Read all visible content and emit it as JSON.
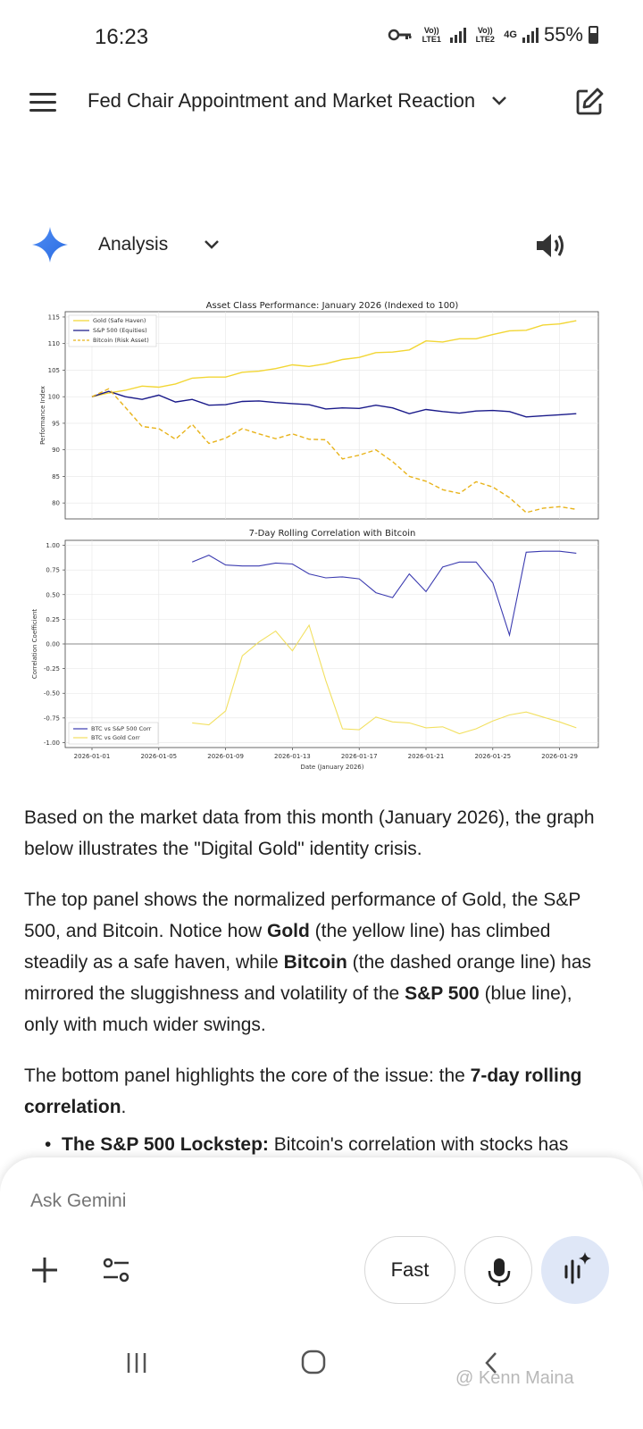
{
  "status_bar": {
    "time": "16:23",
    "sim1": "Vo)) LTE1",
    "sim2": "Vo)) LTE2",
    "net2_type": "4G",
    "battery": "55%"
  },
  "header": {
    "title": "Fed Chair Appointment and Market Reaction",
    "icons": {
      "menu": "menu-icon",
      "edit": "edit-icon",
      "dropdown": "chevron-down-icon"
    }
  },
  "response": {
    "mode_label": "Analysis",
    "icons": {
      "gemini": "gemini-star-icon",
      "speaker": "speaker-icon"
    }
  },
  "chart_data": [
    {
      "type": "line",
      "title": "Asset Class Performance: January 2026 (Indexed to 100)",
      "ylabel": "Performance Index",
      "ylim": [
        77,
        116
      ],
      "yticks": [
        "115",
        "110",
        "105",
        "100",
        "95",
        "90",
        "85",
        "80"
      ],
      "grid": true,
      "legend_position": "top-left",
      "x_days": [
        1,
        2,
        3,
        4,
        5,
        6,
        7,
        8,
        9,
        10,
        11,
        12,
        13,
        14,
        15,
        16,
        17,
        18,
        19,
        20,
        21,
        22,
        23,
        24,
        25,
        26,
        27,
        28,
        29,
        30
      ],
      "series": [
        {
          "name": "Gold (Safe Haven)",
          "color": "#f2d634",
          "style": "solid",
          "values": [
            100,
            100.7,
            101.2,
            102.0,
            101.8,
            102.4,
            103.5,
            103.7,
            103.7,
            104.6,
            104.8,
            105.3,
            106.0,
            105.7,
            106.2,
            107.0,
            107.4,
            108.3,
            108.4,
            108.8,
            110.5,
            110.3,
            110.9,
            110.9,
            111.7,
            112.4,
            112.5,
            113.5,
            113.7,
            114.3
          ]
        },
        {
          "name": "S&P 500 (Equities)",
          "color": "#1a1a8a",
          "style": "solid",
          "values": [
            100,
            101.0,
            100.0,
            99.5,
            100.3,
            99.0,
            99.5,
            98.4,
            98.5,
            99.1,
            99.2,
            98.9,
            98.7,
            98.5,
            97.7,
            97.9,
            97.8,
            98.4,
            97.9,
            96.8,
            97.6,
            97.2,
            96.9,
            97.3,
            97.4,
            97.2,
            96.2,
            96.4,
            96.6,
            96.8
          ]
        },
        {
          "name": "Bitcoin (Risk Asset)",
          "color": "#e8b31a",
          "style": "dashed",
          "values": [
            100,
            101.5,
            98.0,
            94.4,
            94.0,
            92.0,
            94.8,
            91.2,
            92.2,
            94.0,
            93.0,
            92.1,
            93.0,
            92.0,
            91.9,
            88.3,
            89.0,
            90.0,
            87.8,
            85.0,
            84.1,
            82.5,
            81.8,
            84.0,
            83.0,
            81.0,
            78.2,
            79.0,
            79.3,
            78.8
          ]
        }
      ]
    },
    {
      "type": "line",
      "title": "7-Day Rolling Correlation with Bitcoin",
      "xlabel": "Date (January 2026)",
      "ylabel": "Correlation Coefficient",
      "ylim": [
        -1.05,
        1.05
      ],
      "yticks": [
        "1.00",
        "0.75",
        "0.50",
        "0.25",
        "0.00",
        "-0.25",
        "-0.50",
        "-0.75",
        "-1.00"
      ],
      "x_ticklabels": [
        "2026-01-01",
        "2026-01-05",
        "2026-01-09",
        "2026-01-13",
        "2026-01-17",
        "2026-01-21",
        "2026-01-25",
        "2026-01-29"
      ],
      "x_ticks_days": [
        1,
        5,
        9,
        13,
        17,
        21,
        25,
        29
      ],
      "grid": true,
      "zero_line": true,
      "legend_position": "bottom-left",
      "x_days": [
        7,
        8,
        9,
        10,
        11,
        12,
        13,
        14,
        15,
        16,
        17,
        18,
        19,
        20,
        21,
        22,
        23,
        24,
        25,
        26,
        27,
        28,
        29,
        30
      ],
      "series": [
        {
          "name": "BTC vs S&P 500 Corr",
          "color": "#3b3bb0",
          "values": [
            0.83,
            0.9,
            0.8,
            0.79,
            0.79,
            0.82,
            0.81,
            0.71,
            0.67,
            0.68,
            0.66,
            0.52,
            0.47,
            0.71,
            0.53,
            0.78,
            0.83,
            0.83,
            0.62,
            0.09,
            0.93,
            0.94,
            0.94,
            0.92
          ]
        },
        {
          "name": "BTC vs Gold Corr",
          "color": "#f2e060",
          "values": [
            -0.8,
            -0.82,
            -0.68,
            -0.12,
            0.02,
            0.13,
            -0.07,
            0.19,
            -0.37,
            -0.86,
            -0.87,
            -0.74,
            -0.79,
            -0.8,
            -0.85,
            -0.84,
            -0.91,
            -0.86,
            -0.78,
            -0.72,
            -0.69,
            -0.74,
            -0.79,
            -0.85
          ]
        }
      ]
    }
  ],
  "content": {
    "p1": "Based on the market data from this month (January 2026), the graph below illustrates the \"Digital Gold\" identity crisis.",
    "p2_a": "The top panel shows the normalized performance of Gold, the S&P 500, and Bitcoin. Notice how ",
    "p2_b": "Gold",
    "p2_c": " (the yellow line) has climbed steadily as a safe haven, while ",
    "p2_d": "Bitcoin",
    "p2_e": " (the dashed orange line) has mirrored the sluggishness and volatility of the ",
    "p2_f": "S&P 500",
    "p2_g": " (blue line), only with much wider swings.",
    "p3_a": "The bottom panel highlights the core of the issue: the ",
    "p3_b": "7-day rolling correlation",
    "p3_c": ".",
    "bullet_bold": "The S&P 500 Lockstep:",
    "bullet_text": " Bitcoin's correlation with stocks has"
  },
  "input": {
    "placeholder": "Ask Gemini",
    "fast_label": "Fast",
    "icons": {
      "plus": "plus-icon",
      "tools": "tools-icon",
      "mic": "mic-icon",
      "live": "live-icon"
    }
  },
  "watermark": "@ Kenn Maina"
}
